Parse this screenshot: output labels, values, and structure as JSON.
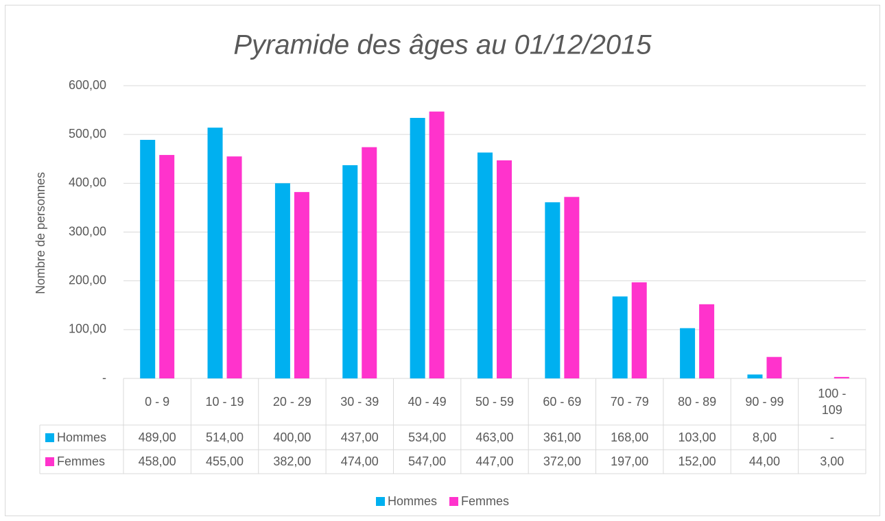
{
  "chart_data": {
    "type": "bar",
    "title": "Pyramide des âges au 01/12/2015",
    "ylabel": "Nombre de personnes",
    "categories": [
      "0 - 9",
      "10 - 19",
      "20 - 29",
      "30 - 39",
      "40 - 49",
      "50 - 59",
      "60 - 69",
      "70 - 79",
      "80 - 89",
      "90 - 99",
      "100 - 109"
    ],
    "series": [
      {
        "name": "Hommes",
        "color": "#00b0f0",
        "values": [
          489,
          514,
          400,
          437,
          534,
          463,
          361,
          168,
          103,
          8,
          0
        ],
        "value_labels": [
          "489,00",
          "514,00",
          "400,00",
          "437,00",
          "534,00",
          "463,00",
          "361,00",
          "168,00",
          "103,00",
          "8,00",
          "-"
        ]
      },
      {
        "name": "Femmes",
        "color": "#ff33cc",
        "values": [
          458,
          455,
          382,
          474,
          547,
          447,
          372,
          197,
          152,
          44,
          3
        ],
        "value_labels": [
          "458,00",
          "455,00",
          "382,00",
          "474,00",
          "547,00",
          "447,00",
          "372,00",
          "197,00",
          "152,00",
          "44,00",
          "3,00"
        ]
      }
    ],
    "ylim": [
      0,
      600
    ],
    "yticks": [
      {
        "value": 0,
        "label": "-"
      },
      {
        "value": 100,
        "label": "100,00"
      },
      {
        "value": 200,
        "label": "200,00"
      },
      {
        "value": 300,
        "label": "300,00"
      },
      {
        "value": 400,
        "label": "400,00"
      },
      {
        "value": 500,
        "label": "500,00"
      },
      {
        "value": 600,
        "label": "600,00"
      }
    ],
    "grid": true,
    "legend": "bottom"
  }
}
